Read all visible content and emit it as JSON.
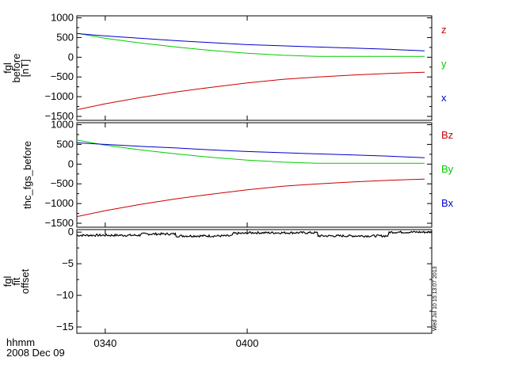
{
  "chart_data": [
    {
      "type": "line",
      "ylabel": [
        "fgl",
        "before",
        "[nT]"
      ],
      "ylim": [
        -1600,
        1050
      ],
      "yticks": [
        1000,
        500,
        0,
        -500,
        -1000,
        -1500
      ],
      "ytick_labels": [
        "1000",
        "500",
        "0",
        "−500",
        "−1000",
        "−1500"
      ],
      "x": [
        "03:36",
        "03:40",
        "03:45",
        "03:50",
        "03:55",
        "04:00",
        "04:05",
        "04:10",
        "04:15",
        "04:20",
        "04:25"
      ],
      "series": [
        {
          "name": "z",
          "color": "#cc0000",
          "values": [
            -1330,
            -1180,
            -1020,
            -880,
            -760,
            -650,
            -560,
            -500,
            -450,
            -410,
            -380
          ]
        },
        {
          "name": "y",
          "color": "#00cc00",
          "values": [
            610,
            480,
            360,
            260,
            170,
            100,
            50,
            20,
            20,
            20,
            20
          ]
        },
        {
          "name": "x",
          "color": "#0000cc",
          "values": [
            600,
            540,
            480,
            420,
            370,
            320,
            290,
            260,
            230,
            200,
            160
          ]
        }
      ]
    },
    {
      "type": "line",
      "ylabel": [
        "thc_fgs_before"
      ],
      "ylim": [
        -1600,
        1050
      ],
      "yticks": [
        1000,
        500,
        0,
        -500,
        -1000,
        -1500
      ],
      "ytick_labels": [
        "1000",
        "500",
        "0",
        "−500",
        "−1000",
        "−1500"
      ],
      "x": [
        "03:36",
        "03:40",
        "03:45",
        "03:50",
        "03:55",
        "04:00",
        "04:05",
        "04:10",
        "04:15",
        "04:20",
        "04:25"
      ],
      "series": [
        {
          "name": "Bz",
          "color": "#cc0000",
          "values": [
            -1330,
            -1180,
            -1020,
            -880,
            -760,
            -650,
            -560,
            -500,
            -450,
            -410,
            -380
          ]
        },
        {
          "name": "By",
          "color": "#00cc00",
          "values": [
            610,
            480,
            360,
            260,
            170,
            100,
            50,
            20,
            20,
            20,
            20
          ]
        },
        {
          "name": "Bx",
          "color": "#0000cc",
          "values": [
            540,
            500,
            450,
            410,
            360,
            320,
            290,
            260,
            230,
            200,
            160
          ]
        }
      ]
    },
    {
      "type": "line",
      "ylabel": [
        "fgl",
        "fit",
        "offset"
      ],
      "ylim": [
        -16,
        0.4
      ],
      "yticks": [
        0,
        -5,
        -10,
        -15
      ],
      "ytick_labels": [
        "0",
        "−5",
        "−10",
        "−15"
      ],
      "x": [
        "03:36",
        "03:40",
        "03:45",
        "03:50",
        "03:55",
        "03:58",
        "04:00",
        "04:05",
        "04:10",
        "04:15",
        "04:20",
        "04:25"
      ],
      "series": [
        {
          "color": "#000000",
          "values": [
            -0.5,
            -0.5,
            -0.3,
            -0.6,
            -0.6,
            -0.2,
            -0.1,
            -0.1,
            -0.6,
            -0.6,
            0.0,
            0.0
          ]
        }
      ]
    }
  ],
  "xaxis": {
    "ticks": [
      "03:40",
      "04:00"
    ],
    "tick_labels": [
      "0340",
      "0400"
    ],
    "units_label": "hhmm",
    "date_label": "2008 Dec 09"
  },
  "timestamp": "Wed Jul 10 15:13:07 2013"
}
